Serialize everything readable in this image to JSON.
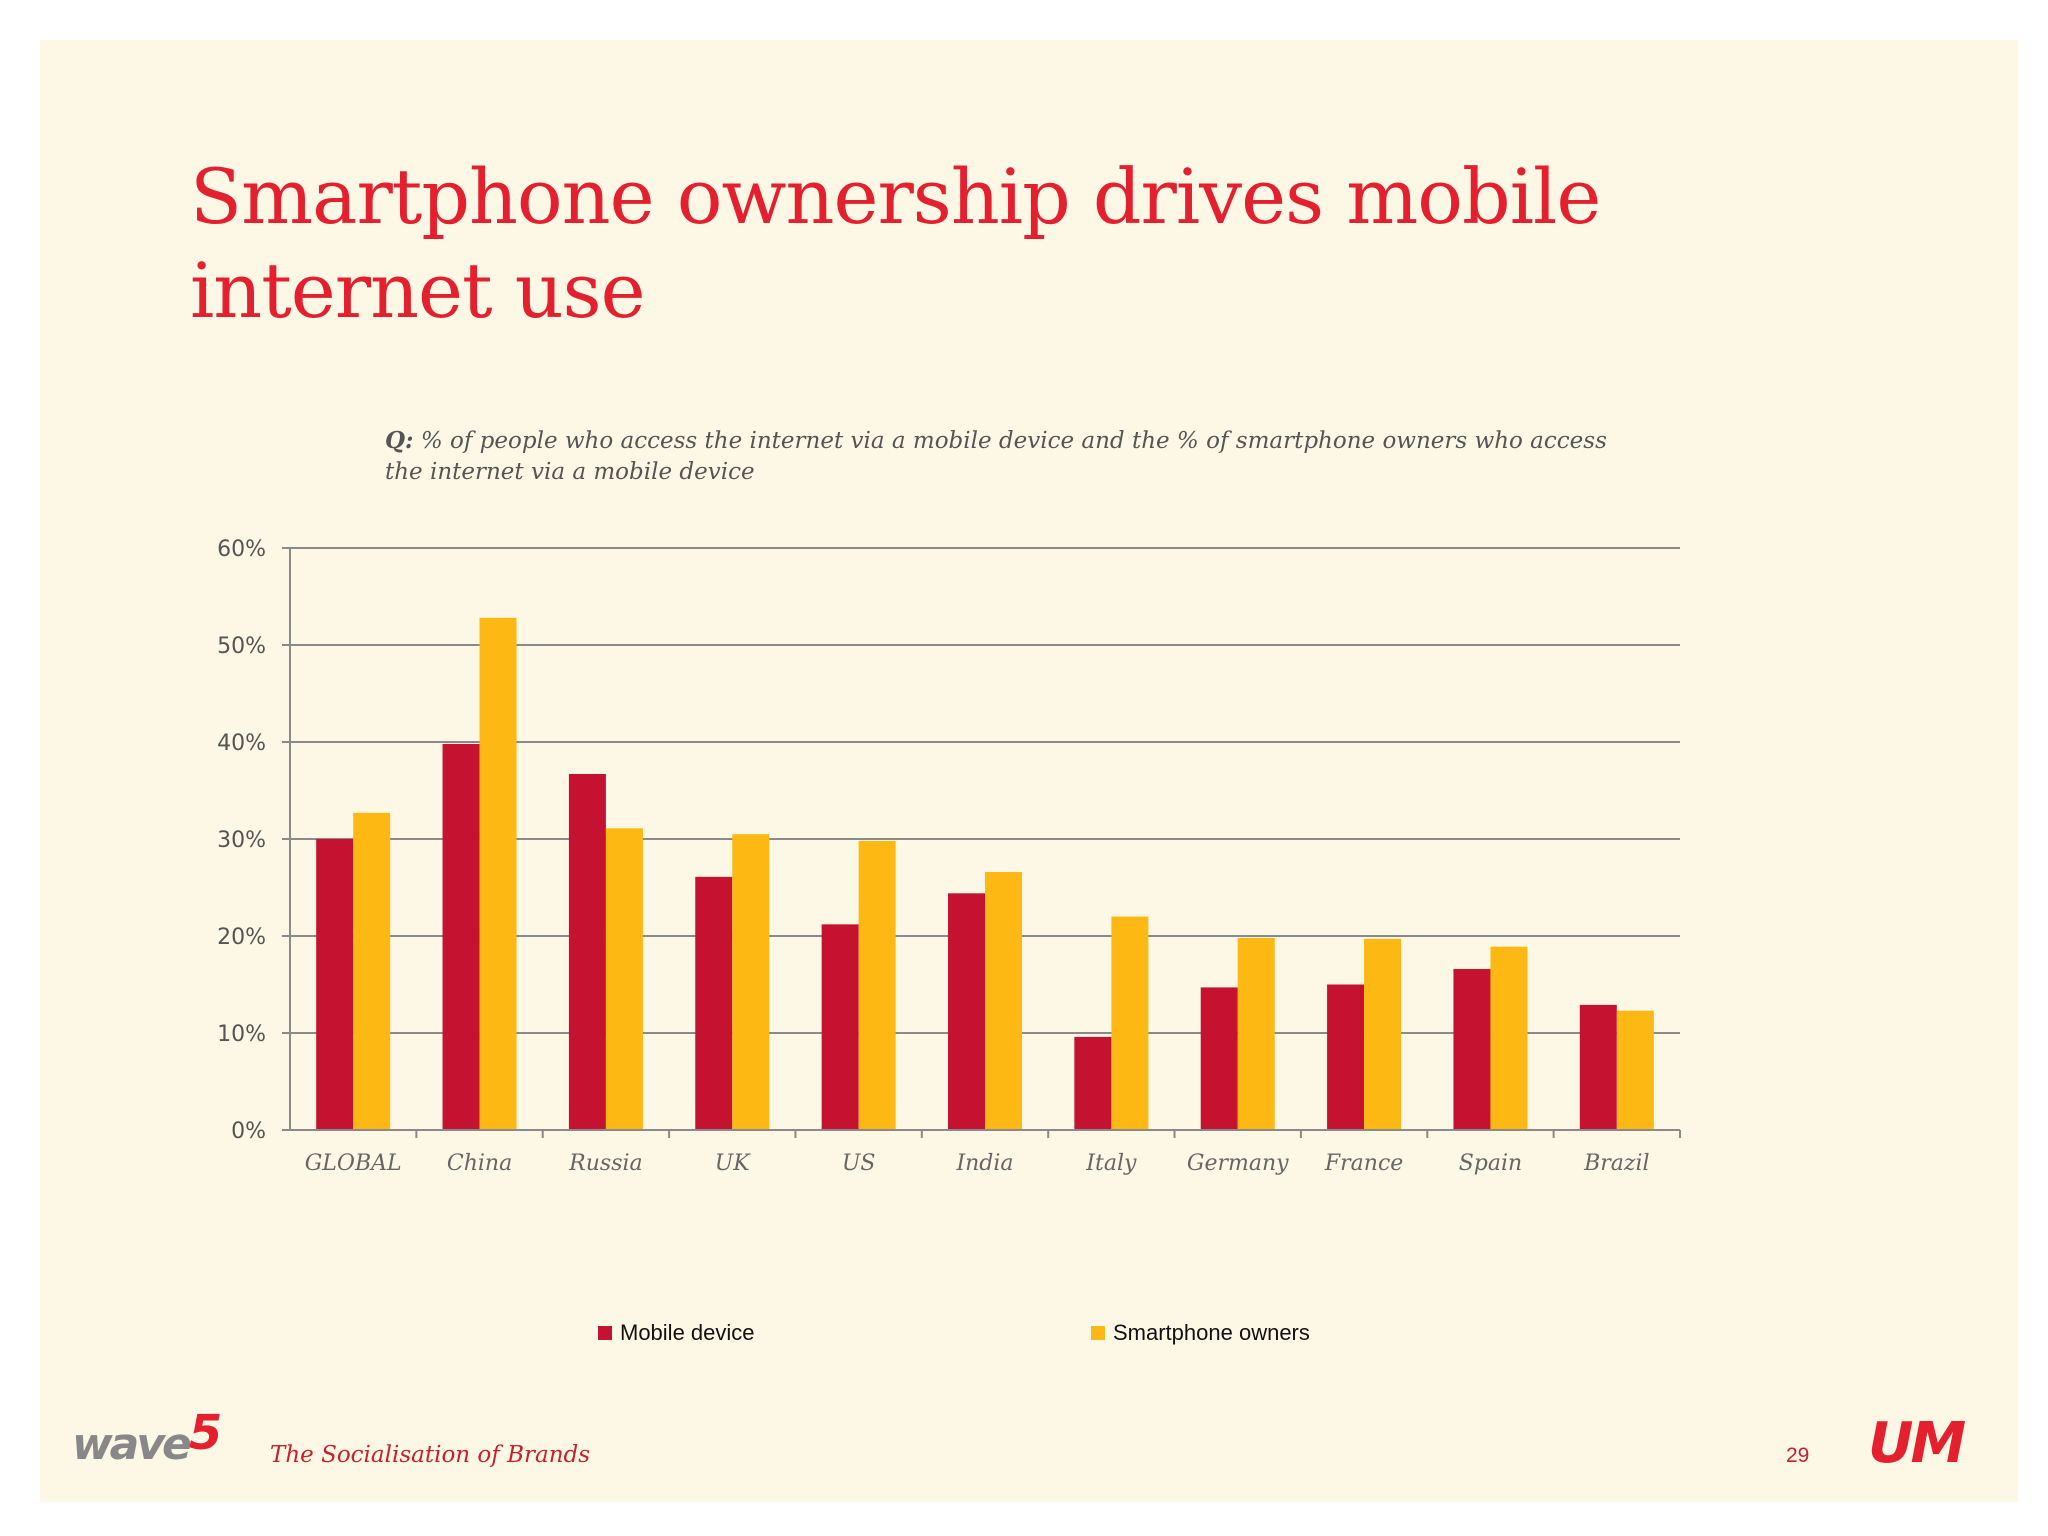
{
  "slide": {
    "title": "Smartphone ownership drives mobile internet use",
    "question_prefix": "Q:",
    "question_text": "% of people who access the internet via a mobile device and the % of smartphone owners who access the internet via a mobile device",
    "footer_logo_left": "wave",
    "footer_logo_left_number": "5",
    "footer_text": "The Socialisation of Brands",
    "page_number": "29",
    "footer_logo_right": "UM"
  },
  "chart_data": {
    "type": "bar",
    "categories": [
      "GLOBAL",
      "China",
      "Russia",
      "UK",
      "US",
      "India",
      "Italy",
      "Germany",
      "France",
      "Spain",
      "Brazil"
    ],
    "series": [
      {
        "name": "Mobile device",
        "color": "#c41230",
        "values": [
          30.0,
          39.8,
          36.7,
          26.1,
          21.2,
          24.4,
          9.6,
          14.7,
          15.0,
          16.6,
          12.9
        ]
      },
      {
        "name": "Smartphone owners",
        "color": "#fdb813",
        "values": [
          32.7,
          52.8,
          31.1,
          30.5,
          29.8,
          26.6,
          22.0,
          19.8,
          19.7,
          18.9,
          12.3
        ]
      }
    ],
    "ylim": [
      0,
      60
    ],
    "yticks": [
      0,
      10,
      20,
      30,
      40,
      50,
      60
    ],
    "ytick_labels": [
      "0%",
      "10%",
      "20%",
      "30%",
      "40%",
      "50%",
      "60%"
    ],
    "grid": true,
    "legend": "bottom"
  }
}
